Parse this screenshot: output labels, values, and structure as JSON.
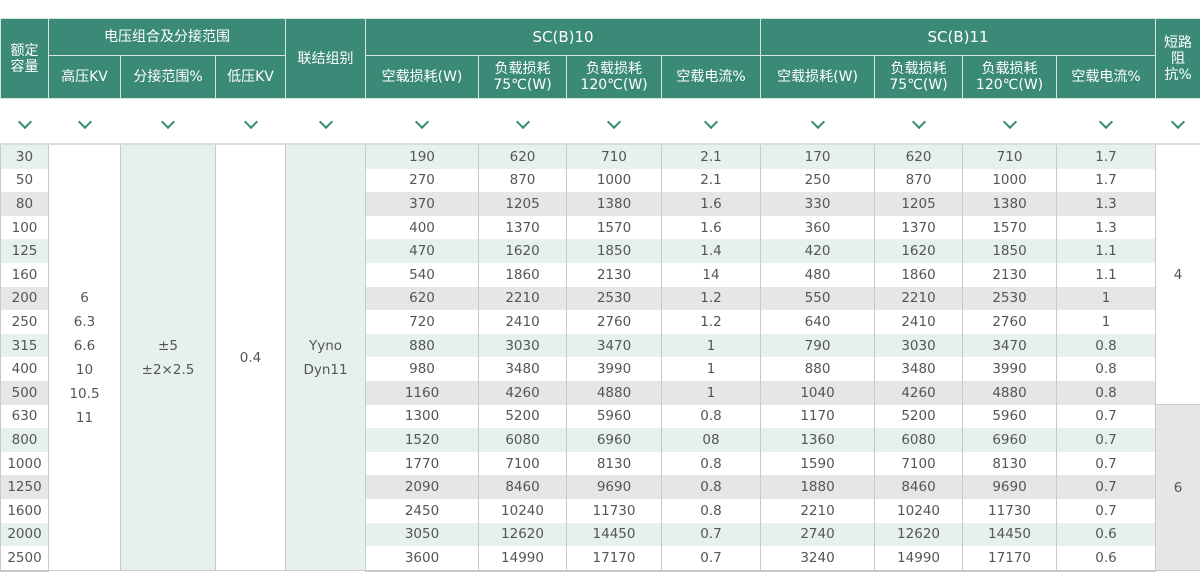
{
  "header": {
    "capacity": "额定容量",
    "voltage_group": "电压组合及分接范围",
    "hv": "高压KV",
    "tap_range": "分接范围%",
    "lv": "低压KV",
    "connection": "联结组别",
    "sc10": "SC(B)10",
    "sc11": "SC(B)11",
    "no_load_loss": "空载损耗(W)",
    "load_loss_75": "负载损耗75℃(W)",
    "load_loss_120": "负载损耗120℃(W)",
    "no_load_current": "空载电流%",
    "impedance": "短路阻抗%"
  },
  "colors": {
    "header": "#3b8a78",
    "row_green": "#e6f1ec",
    "row_gray": "#e6e6e6"
  },
  "merged": {
    "hv": "6\n6.3\n6.6\n10\n10.5\n11",
    "tap_range": "±5\n±2×2.5",
    "lv": "0.4",
    "connection": "Yyno\nDyn11",
    "impedance_groups": [
      {
        "value": "4",
        "rows": 11
      },
      {
        "value": "6",
        "rows": 7
      }
    ]
  },
  "rows": [
    {
      "cap": "30",
      "sc10": [
        "190",
        "620",
        "710",
        "2.1"
      ],
      "sc11": [
        "170",
        "620",
        "710",
        "1.7"
      ]
    },
    {
      "cap": "50",
      "sc10": [
        "270",
        "870",
        "1000",
        "2.1"
      ],
      "sc11": [
        "250",
        "870",
        "1000",
        "1.7"
      ]
    },
    {
      "cap": "80",
      "sc10": [
        "370",
        "1205",
        "1380",
        "1.6"
      ],
      "sc11": [
        "330",
        "1205",
        "1380",
        "1.3"
      ]
    },
    {
      "cap": "100",
      "sc10": [
        "400",
        "1370",
        "1570",
        "1.6"
      ],
      "sc11": [
        "360",
        "1370",
        "1570",
        "1.3"
      ]
    },
    {
      "cap": "125",
      "sc10": [
        "470",
        "1620",
        "1850",
        "1.4"
      ],
      "sc11": [
        "420",
        "1620",
        "1850",
        "1.1"
      ]
    },
    {
      "cap": "160",
      "sc10": [
        "540",
        "1860",
        "2130",
        "14"
      ],
      "sc11": [
        "480",
        "1860",
        "2130",
        "1.1"
      ]
    },
    {
      "cap": "200",
      "sc10": [
        "620",
        "2210",
        "2530",
        "1.2"
      ],
      "sc11": [
        "550",
        "2210",
        "2530",
        "1"
      ]
    },
    {
      "cap": "250",
      "sc10": [
        "720",
        "2410",
        "2760",
        "1.2"
      ],
      "sc11": [
        "640",
        "2410",
        "2760",
        "1"
      ]
    },
    {
      "cap": "315",
      "sc10": [
        "880",
        "3030",
        "3470",
        "1"
      ],
      "sc11": [
        "790",
        "3030",
        "3470",
        "0.8"
      ]
    },
    {
      "cap": "400",
      "sc10": [
        "980",
        "3480",
        "3990",
        "1"
      ],
      "sc11": [
        "880",
        "3480",
        "3990",
        "0.8"
      ]
    },
    {
      "cap": "500",
      "sc10": [
        "1160",
        "4260",
        "4880",
        "1"
      ],
      "sc11": [
        "1040",
        "4260",
        "4880",
        "0.8"
      ]
    },
    {
      "cap": "630",
      "sc10": [
        "1300",
        "5200",
        "5960",
        "0.8"
      ],
      "sc11": [
        "1170",
        "5200",
        "5960",
        "0.7"
      ]
    },
    {
      "cap": "800",
      "sc10": [
        "1520",
        "6080",
        "6960",
        "08"
      ],
      "sc11": [
        "1360",
        "6080",
        "6960",
        "0.7"
      ]
    },
    {
      "cap": "1000",
      "sc10": [
        "1770",
        "7100",
        "8130",
        "0.8"
      ],
      "sc11": [
        "1590",
        "7100",
        "8130",
        "0.7"
      ]
    },
    {
      "cap": "1250",
      "sc10": [
        "2090",
        "8460",
        "9690",
        "0.8"
      ],
      "sc11": [
        "1880",
        "8460",
        "9690",
        "0.7"
      ]
    },
    {
      "cap": "1600",
      "sc10": [
        "2450",
        "10240",
        "11730",
        "0.8"
      ],
      "sc11": [
        "2210",
        "10240",
        "11730",
        "0.7"
      ]
    },
    {
      "cap": "2000",
      "sc10": [
        "3050",
        "12620",
        "14450",
        "0.7"
      ],
      "sc11": [
        "2740",
        "12620",
        "14450",
        "0.6"
      ]
    },
    {
      "cap": "2500",
      "sc10": [
        "3600",
        "14990",
        "17170",
        "0.7"
      ],
      "sc11": [
        "3240",
        "14990",
        "17170",
        "0.6"
      ]
    }
  ]
}
